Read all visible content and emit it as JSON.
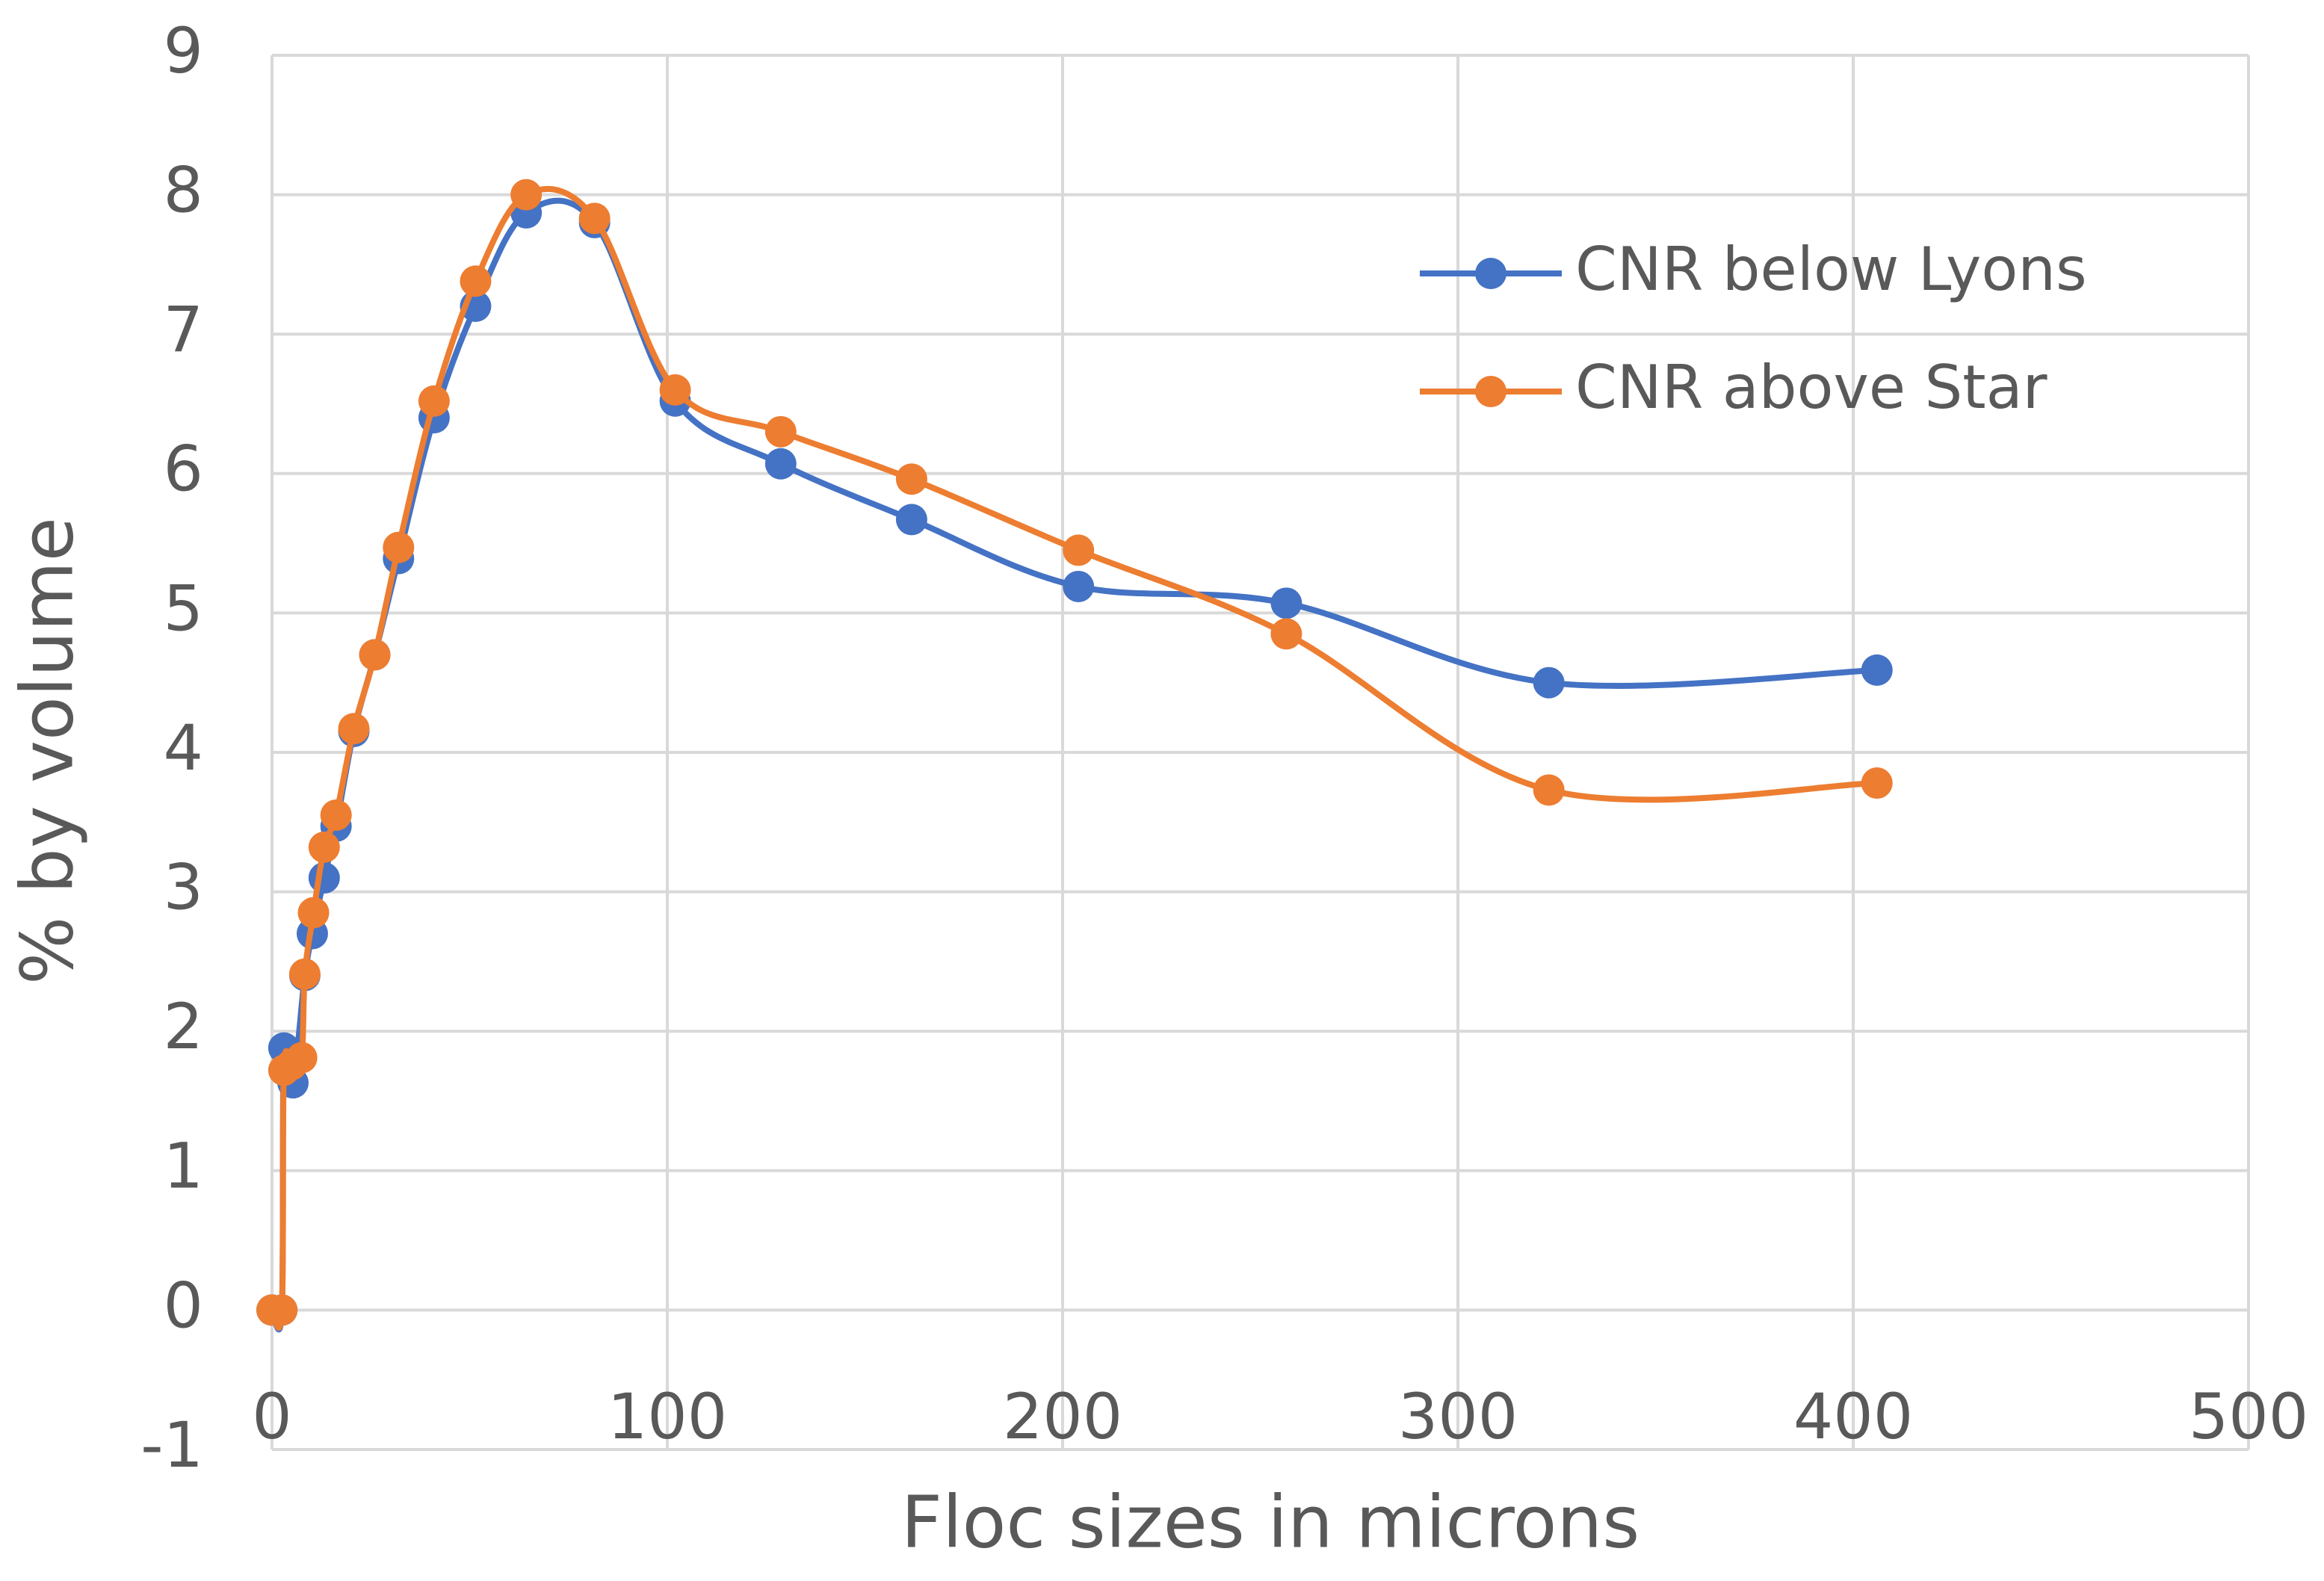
{
  "chart_data": {
    "type": "line",
    "smooth": true,
    "xlabel": "Floc sizes in microns",
    "ylabel": "% by volume",
    "xlim": [
      0,
      500
    ],
    "xticks": [
      0,
      100,
      200,
      300,
      400,
      500
    ],
    "ylim": [
      -1,
      9
    ],
    "yticks": [
      -1,
      0,
      1,
      2,
      3,
      4,
      5,
      6,
      7,
      8,
      9
    ],
    "grid": true,
    "legend": "upper right",
    "series": [
      {
        "name": "CNR below Lyons",
        "color": "#4472c4",
        "x": [
          0,
          2.5,
          3,
          5.3,
          8.3,
          10.2,
          13.2,
          16.2,
          20.7,
          26,
          32,
          41,
          51.5,
          64.3,
          81.6,
          102,
          128.7,
          161.8,
          204,
          256.6,
          323,
          406
        ],
        "values": [
          0,
          0,
          1.88,
          1.63,
          2.4,
          2.7,
          3.1,
          3.47,
          4.15,
          4.7,
          5.39,
          6.4,
          7.2,
          7.87,
          7.8,
          6.52,
          6.07,
          5.67,
          5.19,
          5.07,
          4.5,
          4.59
        ]
      },
      {
        "name": "CNR above Star",
        "color": "#ed7d31",
        "x": [
          0,
          2.5,
          3,
          5,
          7.5,
          8.3,
          10.5,
          13.2,
          16.2,
          20.7,
          26,
          32,
          41,
          51.5,
          64.3,
          81.6,
          102,
          128.7,
          161.8,
          204,
          256.6,
          323,
          406
        ],
        "values": [
          0,
          0,
          1.72,
          1.76,
          1.81,
          2.41,
          2.85,
          3.32,
          3.55,
          4.17,
          4.7,
          5.47,
          6.52,
          7.38,
          8.0,
          7.83,
          6.6,
          6.3,
          5.96,
          5.45,
          4.85,
          3.73,
          3.78
        ]
      }
    ]
  }
}
